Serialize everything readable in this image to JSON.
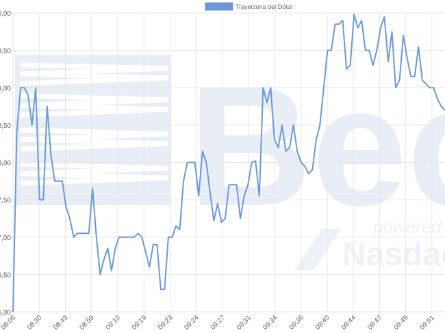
{
  "chart_data": {
    "type": "line",
    "legend": {
      "label": "Trayectoria del Dólar",
      "position": "top"
    },
    "series_color": "#6a98d8",
    "grid": true,
    "y_ticks": [
      "6,00",
      "6,50",
      "7,00",
      "7,50",
      "8,00",
      "8,50",
      "9,00",
      "9,50",
      "0,00"
    ],
    "ylim": [
      936.0,
      940.0
    ],
    "x_tick_labels": [
      "08:06",
      "08:30",
      "08:43",
      "08:59",
      "09:10",
      "09:19",
      "09:23",
      "09:24",
      "09:27",
      "09:31",
      "09:34",
      "09:36",
      "09:40",
      "09:44",
      "09:47",
      "09:49",
      "09:51"
    ],
    "values": [
      936.0,
      938.4,
      939.0,
      939.0,
      938.9,
      938.5,
      939.0,
      937.5,
      937.5,
      938.75,
      938.1,
      937.75,
      937.75,
      937.75,
      937.4,
      937.25,
      937.0,
      937.05,
      937.05,
      937.05,
      937.05,
      937.65,
      937.0,
      936.5,
      936.7,
      936.85,
      936.55,
      936.85,
      937.0,
      937.0,
      937.0,
      937.0,
      937.0,
      937.05,
      937.0,
      936.8,
      936.6,
      936.9,
      936.9,
      936.3,
      936.3,
      937.0,
      937.0,
      937.15,
      937.1,
      937.75,
      938.0,
      938.0,
      938.0,
      937.55,
      938.15,
      938.0,
      937.6,
      937.22,
      937.45,
      937.2,
      937.25,
      937.7,
      937.7,
      937.7,
      937.25,
      937.55,
      937.7,
      938.0,
      938.02,
      937.55,
      939.0,
      938.8,
      939.0,
      938.3,
      938.2,
      938.5,
      938.15,
      938.2,
      938.5,
      938.15,
      938.0,
      937.95,
      937.85,
      937.9,
      938.3,
      938.5,
      939.0,
      939.5,
      939.5,
      939.85,
      939.85,
      939.9,
      939.25,
      939.3,
      939.98,
      939.8,
      939.9,
      939.5,
      939.5,
      939.3,
      939.5,
      939.8,
      939.95,
      939.35,
      939.75,
      939.0,
      939.1,
      939.7,
      939.4,
      939.15,
      939.15,
      939.55,
      939.1,
      939.05,
      939.0,
      939.0,
      938.85,
      938.75,
      938.7
    ]
  },
  "watermark": {
    "brand": "Bec",
    "tagline": "powered by",
    "partner": "Nasdac"
  }
}
